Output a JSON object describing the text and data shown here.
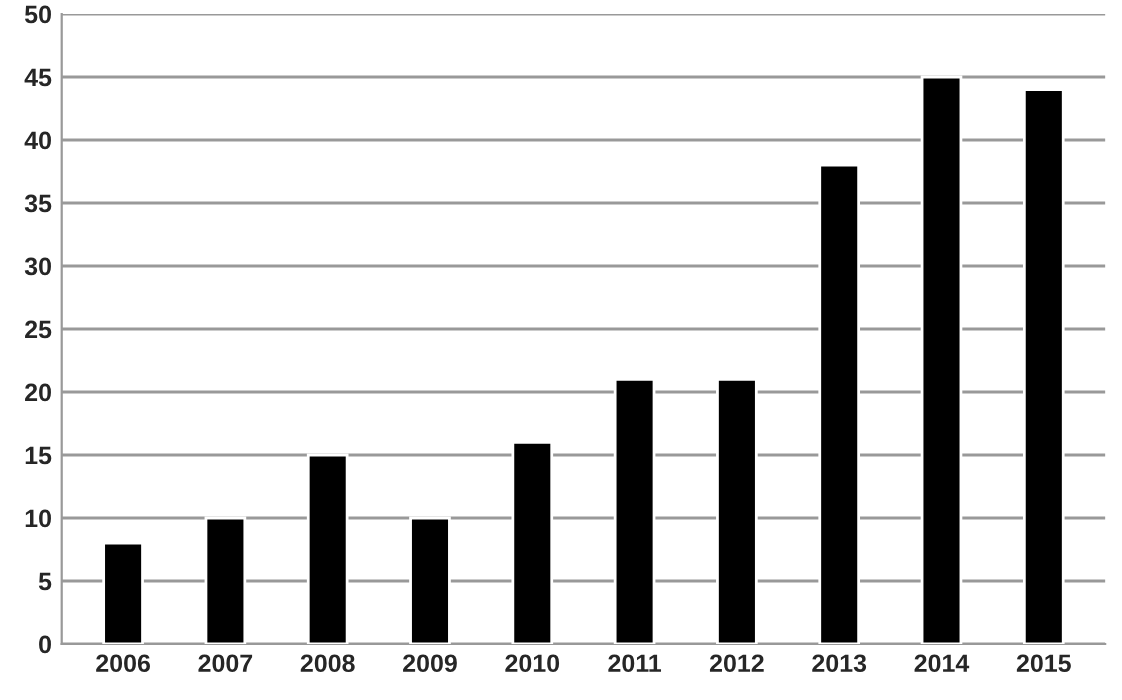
{
  "chart_data": {
    "type": "bar",
    "categories": [
      "2006",
      "2007",
      "2008",
      "2009",
      "2010",
      "2011",
      "2012",
      "2013",
      "2014",
      "2015"
    ],
    "values": [
      8,
      10,
      15,
      10,
      16,
      21,
      21,
      38,
      45,
      44
    ],
    "color": "#000000",
    "ylim": [
      0,
      50
    ],
    "yticks": [
      0,
      5,
      10,
      15,
      20,
      25,
      30,
      35,
      40,
      45,
      50
    ],
    "grid": "y"
  }
}
